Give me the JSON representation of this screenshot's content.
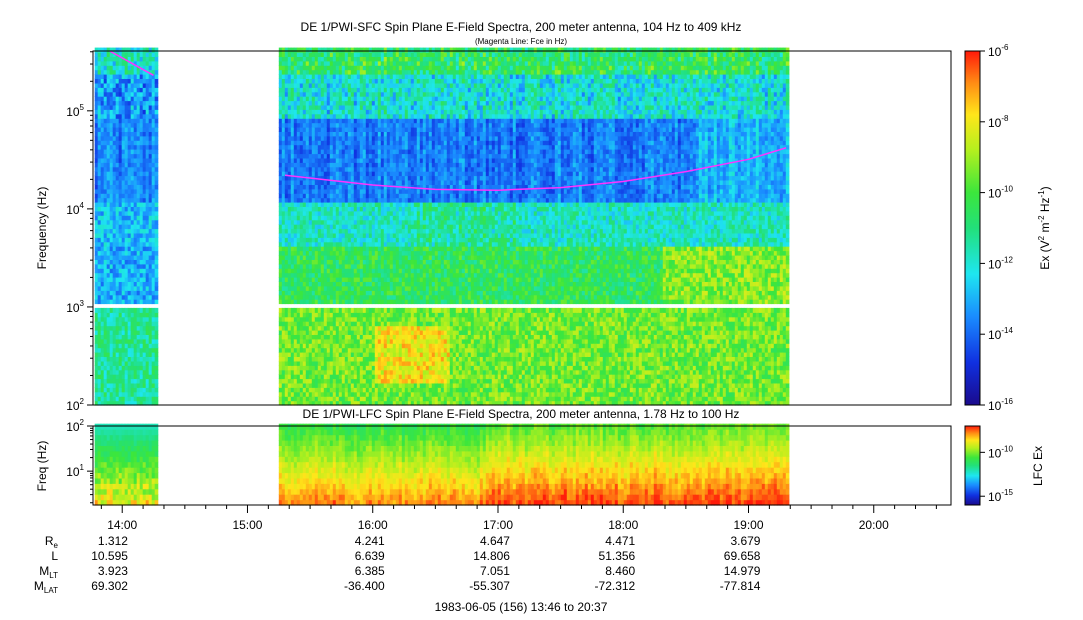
{
  "chart_data": [
    {
      "type": "heatmap",
      "title": "DE 1/PWI-SFC  Spin Plane E-Field Spectra, 200 meter antenna, 104 Hz to 409 kHz",
      "subtitle": "(Magenta Line: Fce in Hz)",
      "ylabel": "Frequency (Hz)",
      "ytick_labels": [
        "10^2",
        "10^3",
        "10^4",
        "10^5"
      ],
      "ylim_log10": [
        2,
        5.61
      ],
      "colorbar": {
        "label": "Ex (V^2 m^-2 Hz^-1)",
        "tick_labels": [
          "10^-6",
          "10^-8",
          "10^-10",
          "10^-12",
          "10^-14",
          "10^-16"
        ],
        "range_log10": [
          -16,
          -6
        ]
      },
      "data_intervals_hours": [
        [
          13.78,
          14.27
        ],
        [
          15.25,
          19.32
        ]
      ],
      "fce_line": {
        "name": "Fce",
        "color": "#ff33ff",
        "points_hours_hz": [
          [
            13.9,
            409000
          ],
          [
            14.25,
            230000
          ],
          [
            15.3,
            22000
          ],
          [
            16.0,
            17500
          ],
          [
            16.5,
            15800
          ],
          [
            17.0,
            15500
          ],
          [
            17.5,
            16500
          ],
          [
            18.0,
            19000
          ],
          [
            18.5,
            24000
          ],
          [
            19.0,
            32000
          ],
          [
            19.3,
            42000
          ]
        ]
      }
    },
    {
      "type": "heatmap",
      "title": "DE 1/PWI-LFC  Spin Plane E-Field Spectra, 200 meter antenna, 1.78 Hz to 100 Hz",
      "ylabel": "Freq (Hz)",
      "ytick_labels": [
        "10^1",
        "10^2"
      ],
      "ylim_log10": [
        0.25,
        2.0
      ],
      "colorbar": {
        "label": "LFC Ex",
        "tick_labels": [
          "10^-10",
          "10^-15"
        ],
        "range_log10": [
          -16,
          -7
        ]
      },
      "data_intervals_hours": [
        [
          13.78,
          14.27
        ],
        [
          15.25,
          19.32
        ]
      ]
    }
  ],
  "time_axis": {
    "tick_labels": [
      "14:00",
      "15:00",
      "16:00",
      "17:00",
      "18:00",
      "19:00",
      "20:00"
    ],
    "tick_hours": [
      14,
      15,
      16,
      17,
      18,
      19,
      20
    ],
    "range_hours": [
      13.7667,
      20.6167
    ]
  },
  "ephemeris": {
    "rows": [
      {
        "label": "R",
        "sub": "e",
        "values": [
          "1.312",
          "4.241",
          "4.647",
          "4.471",
          "3.679"
        ]
      },
      {
        "label": "L",
        "sub": "",
        "values": [
          "10.595",
          "6.639",
          "14.806",
          "51.356",
          "69.658"
        ]
      },
      {
        "label": "M",
        "sub": "LT",
        "values": [
          "3.923",
          "6.385",
          "7.051",
          "8.460",
          "14.979"
        ]
      },
      {
        "label": "M",
        "sub": "LAT",
        "values": [
          "69.302",
          "-36.400",
          "-55.307",
          "-72.312",
          "-77.814"
        ]
      }
    ]
  },
  "footer": "1983-06-05 (156) 13:46 to 20:37"
}
